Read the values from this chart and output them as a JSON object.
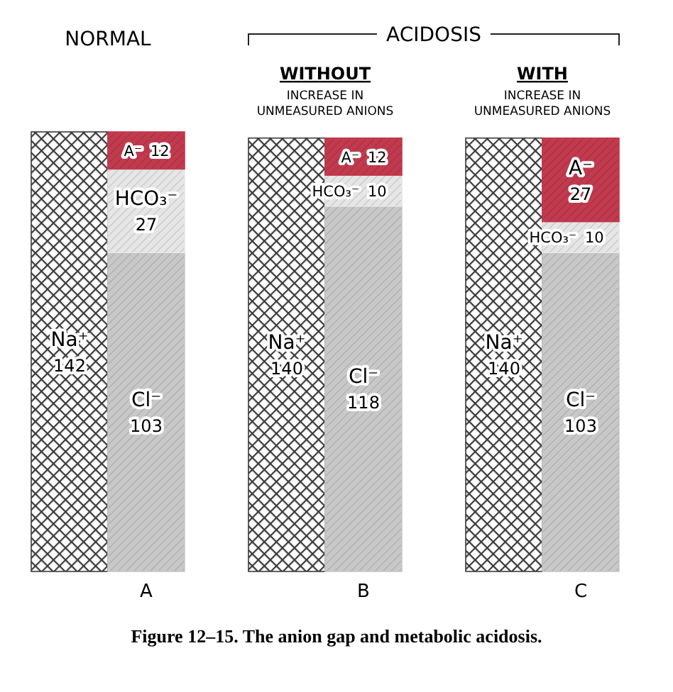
{
  "chart_data": {
    "type": "bar",
    "stacked": true,
    "data_labels": true,
    "legend": false,
    "categories": [
      null,
      "A",
      null,
      "B",
      null,
      "C"
    ],
    "series": [
      {
        "name": "Na⁺",
        "color": "#3a3a3a",
        "values": [
          142,
          null,
          140,
          null,
          140,
          null
        ]
      },
      {
        "name": "Cl⁻",
        "color": "#c8c8c8",
        "values": [
          null,
          103,
          null,
          118,
          null,
          103
        ]
      },
      {
        "name": "HCO₃⁻",
        "color": "#e6e6e6",
        "values": [
          null,
          27,
          null,
          10,
          null,
          10
        ]
      },
      {
        "name": "A⁻",
        "color": "#c23a4e",
        "values": [
          null,
          12,
          null,
          12,
          null,
          27
        ]
      }
    ],
    "annotations": [
      "NORMAL",
      "ACIDOSIS",
      "WITHOUT INCREASE IN UNMEASURED ANIONS",
      "WITH INCREASE IN UNMEASURED ANIONS",
      "Figure 12–15. The anion gap and metabolic acidosis."
    ]
  }
}
